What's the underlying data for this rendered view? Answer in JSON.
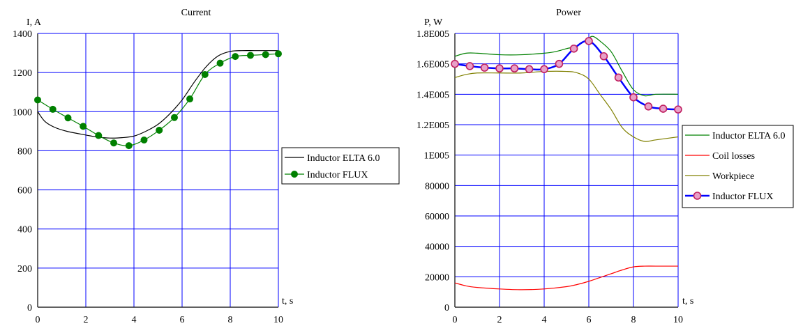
{
  "chart_data": [
    {
      "type": "line",
      "title": "Current",
      "ylabel": "I, A",
      "xlabel": "t, s",
      "xlim": [
        0,
        10
      ],
      "ylim": [
        0,
        1400
      ],
      "x_ticks": [
        0,
        2,
        4,
        6,
        8,
        10
      ],
      "y_ticks": [
        0,
        200,
        400,
        600,
        800,
        1000,
        1200,
        1400
      ],
      "x_tick_labels": [
        "0",
        "2",
        "4",
        "6",
        "8",
        "10"
      ],
      "y_tick_labels": [
        "0",
        "200",
        "400",
        "600",
        "800",
        "1000",
        "1200",
        "1400"
      ],
      "grid": true,
      "legend_position": "right",
      "series": [
        {
          "name": "Inductor ELTA 6.0",
          "color": "#000000",
          "marker": "none",
          "x": [
            0,
            0.3,
            0.7,
            1.2,
            1.8,
            2.4,
            3.0,
            3.5,
            4.0,
            4.5,
            5.0,
            5.5,
            6.0,
            6.5,
            7.0,
            7.5,
            8.0,
            8.5,
            9.0,
            9.5,
            10.0
          ],
          "y": [
            1000,
            950,
            920,
            900,
            885,
            872,
            865,
            867,
            875,
            900,
            935,
            990,
            1060,
            1150,
            1230,
            1285,
            1308,
            1312,
            1312,
            1312,
            1312
          ]
        },
        {
          "name": "Inductor FLUX",
          "color": "#008000",
          "marker": "circle",
          "x": [
            0,
            0.63,
            1.26,
            1.89,
            2.53,
            3.16,
            3.79,
            4.42,
            5.05,
            5.68,
            6.32,
            6.95,
            7.58,
            8.21,
            8.84,
            9.47,
            10.0
          ],
          "y": [
            1060,
            1012,
            968,
            925,
            878,
            840,
            826,
            855,
            905,
            970,
            1065,
            1190,
            1248,
            1282,
            1288,
            1292,
            1296
          ]
        }
      ]
    },
    {
      "type": "line",
      "title": "Power",
      "ylabel": "P, W",
      "xlabel": "t, s",
      "xlim": [
        0,
        10
      ],
      "ylim": [
        0,
        180000
      ],
      "x_ticks": [
        0,
        2,
        4,
        6,
        8,
        10
      ],
      "y_ticks": [
        0,
        20000,
        40000,
        60000,
        80000,
        100000,
        120000,
        140000,
        160000,
        180000
      ],
      "x_tick_labels": [
        "0",
        "2",
        "4",
        "6",
        "8",
        "10"
      ],
      "y_tick_labels": [
        "0",
        "20000",
        "40000",
        "60000",
        "80000",
        "1E005",
        "1.2E005",
        "1.4E005",
        "1.6E005",
        "1.8E005"
      ],
      "grid": true,
      "legend_position": "right",
      "series": [
        {
          "name": "Inductor ELTA 6.0",
          "color": "#008000",
          "marker": "none",
          "x": [
            0,
            0.5,
            1,
            2,
            3,
            4,
            4.5,
            5,
            5.5,
            6,
            6.2,
            6.5,
            7,
            7.5,
            8,
            8.5,
            9,
            10
          ],
          "y": [
            165000,
            167000,
            167000,
            166000,
            166000,
            167000,
            168000,
            170000,
            172000,
            177000,
            178000,
            175000,
            168000,
            155000,
            143000,
            139000,
            140000,
            140000
          ]
        },
        {
          "name": "Coil losses",
          "color": "#ff0000",
          "marker": "none",
          "x": [
            0,
            0.5,
            1,
            2,
            3,
            4,
            5,
            5.5,
            6,
            6.5,
            7,
            7.5,
            8,
            8.5,
            9,
            10
          ],
          "y": [
            16000,
            14000,
            13000,
            12000,
            11500,
            12000,
            13500,
            15000,
            17000,
            19500,
            22000,
            24500,
            26500,
            27000,
            27000,
            27000
          ]
        },
        {
          "name": "Workpiece",
          "color": "#808000",
          "marker": "none",
          "x": [
            0,
            0.5,
            1,
            2,
            3,
            4,
            5,
            5.5,
            6,
            6.5,
            7,
            7.5,
            8,
            8.5,
            9,
            10
          ],
          "y": [
            151000,
            153000,
            154000,
            154000,
            154000,
            155000,
            155000,
            154000,
            150000,
            140000,
            130000,
            118000,
            112000,
            109000,
            110000,
            112000
          ]
        },
        {
          "name": "Inductor FLUX",
          "color": "#0000ff",
          "marker": "circle",
          "marker_fill": "#e8a0c8",
          "marker_edge": "#c02060",
          "x": [
            0,
            0.67,
            1.33,
            2.0,
            2.67,
            3.33,
            4.0,
            4.67,
            5.33,
            6.0,
            6.67,
            7.33,
            8.0,
            8.67,
            9.33,
            10.0
          ],
          "y": [
            160000,
            158500,
            157500,
            157000,
            157000,
            156500,
            156500,
            160000,
            170000,
            175000,
            165000,
            151000,
            138000,
            132000,
            130500,
            130000
          ]
        }
      ]
    }
  ]
}
